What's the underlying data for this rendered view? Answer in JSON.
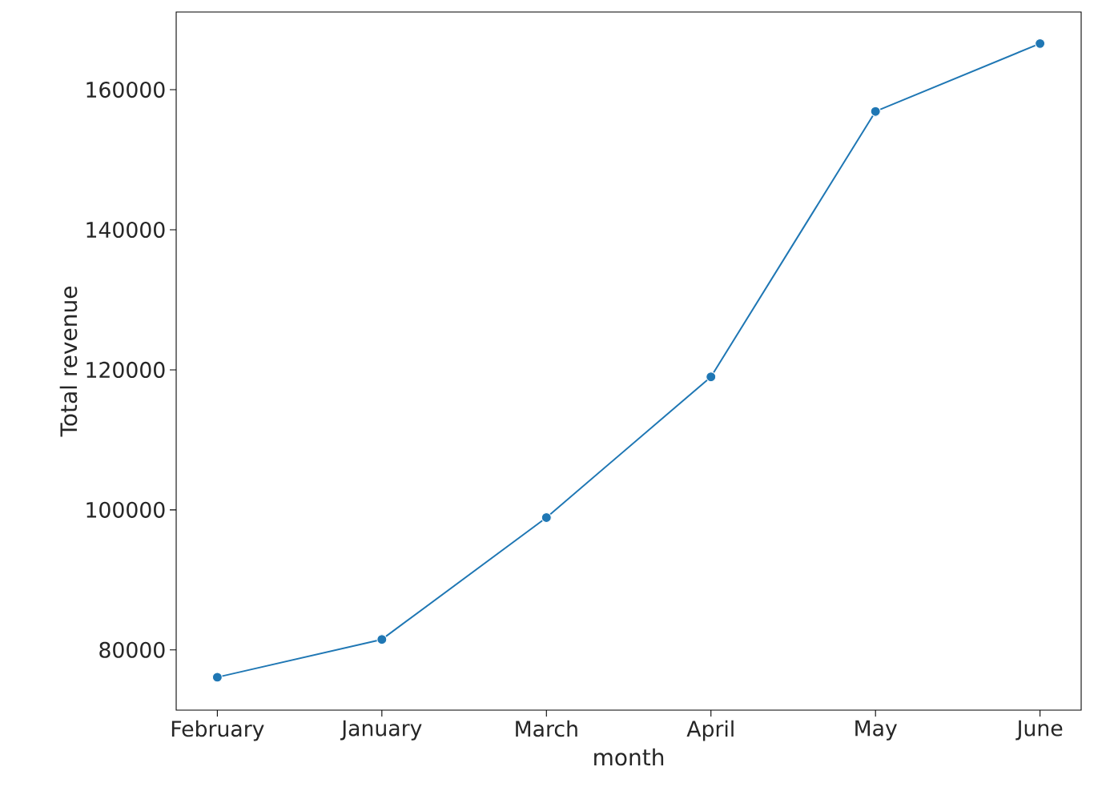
{
  "chart_data": {
    "type": "line",
    "xlabel": "month",
    "ylabel": "Total revenue",
    "categories": [
      "February",
      "January",
      "March",
      "April",
      "May",
      "June"
    ],
    "series": [
      {
        "color": "#1f77b4",
        "values": [
          76100,
          81500,
          98900,
          119000,
          156900,
          166600
        ]
      }
    ],
    "ylim": [
      71400,
      171100
    ],
    "yticks": [
      80000,
      100000,
      120000,
      140000,
      160000
    ],
    "marker": "circle",
    "line_style": "solid",
    "grid": false
  }
}
